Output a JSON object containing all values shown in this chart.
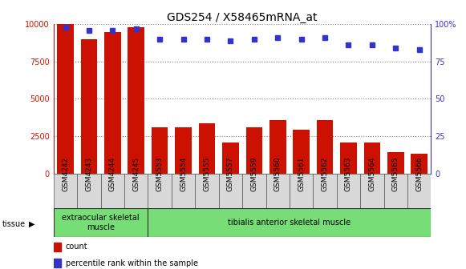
{
  "title": "GDS254 / X58465mRNA_at",
  "categories": [
    "GSM4242",
    "GSM4243",
    "GSM4244",
    "GSM4245",
    "GSM5553",
    "GSM5554",
    "GSM5555",
    "GSM5557",
    "GSM5559",
    "GSM5560",
    "GSM5561",
    "GSM5562",
    "GSM5563",
    "GSM5564",
    "GSM5565",
    "GSM5566"
  ],
  "counts": [
    10000,
    9000,
    9500,
    9800,
    3100,
    3100,
    3350,
    2050,
    3100,
    3600,
    2950,
    3600,
    2050,
    2050,
    1450,
    1300
  ],
  "percentile": [
    98,
    96,
    96,
    97,
    90,
    90,
    90,
    89,
    90,
    91,
    90,
    91,
    86,
    86,
    84,
    83
  ],
  "bar_color": "#cc1100",
  "dot_color": "#3333cc",
  "bg_color": "#ffffff",
  "left_axis_color": "#cc1100",
  "right_axis_color": "#3333cc",
  "ylim_left": [
    0,
    10000
  ],
  "ylim_right": [
    0,
    100
  ],
  "yticks_left": [
    0,
    2500,
    5000,
    7500,
    10000
  ],
  "yticks_right": [
    0,
    25,
    50,
    75,
    100
  ],
  "tissue_groups": [
    {
      "label": "extraocular skeletal\nmuscle",
      "start": 0,
      "end": 4
    },
    {
      "label": "tibialis anterior skeletal muscle",
      "start": 4,
      "end": 16
    }
  ],
  "tissue_label": "tissue",
  "legend_count_label": "count",
  "legend_pct_label": "percentile rank within the sample",
  "grid_color": "#888888",
  "tick_label_fontsize": 6.5,
  "title_fontsize": 10,
  "xtick_bg": "#d8d8d8",
  "tissue_green": "#77dd77"
}
